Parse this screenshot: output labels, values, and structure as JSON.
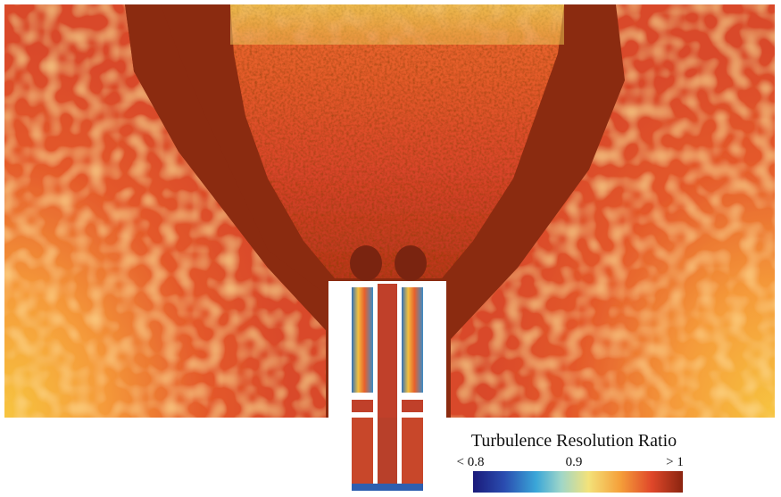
{
  "colorbar": {
    "title": "Turbulence Resolution Ratio",
    "labels": [
      "< 0.8",
      "0.9",
      "> 1"
    ]
  }
}
